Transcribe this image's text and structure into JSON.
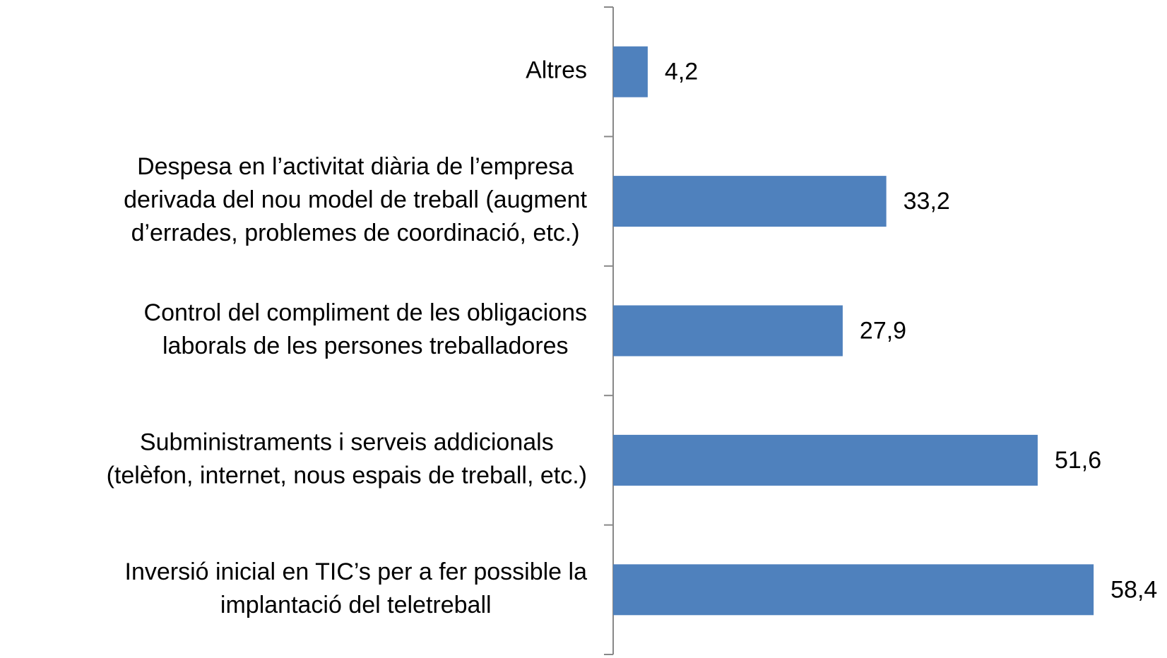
{
  "chart_data": {
    "type": "barh",
    "categories": [
      [
        "Altres"
      ],
      [
        "Despesa en l’activitat diària de l’empresa",
        "derivada del nou model de treball (augment",
        "d’errades, problemes de coordinació, etc.)"
      ],
      [
        "Control del compliment de les obligacions",
        "laborals de les persones treballadores"
      ],
      [
        "Subministraments i serveis addicionals",
        "(telèfon, internet, nous espais de treball, etc.)"
      ],
      [
        "Inversió inicial en TIC’s per a fer possible la",
        "implantació del teletreball"
      ]
    ],
    "values": [
      4.2,
      33.2,
      27.9,
      51.6,
      58.4
    ],
    "value_labels": [
      "4,2",
      "33,2",
      "27,9",
      "51,6",
      "58,4"
    ],
    "color": "#4f81bd",
    "xlim": [
      0,
      65
    ]
  }
}
